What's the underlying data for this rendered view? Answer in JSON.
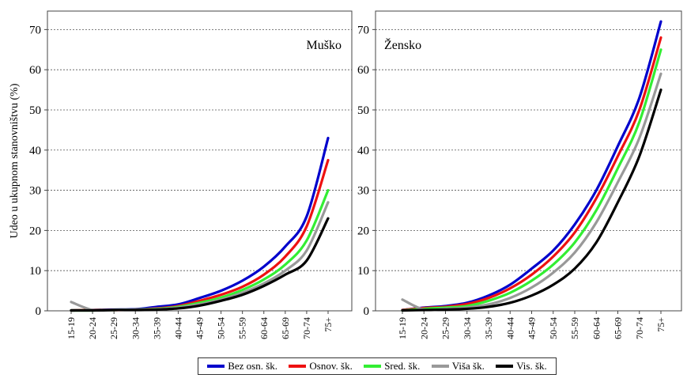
{
  "chart_data": [
    {
      "type": "line",
      "title": "Muško",
      "ylabel": "Udeo u ukupnom stanovništvu (%)",
      "xlabel": "",
      "ylim": [
        0,
        75
      ],
      "yticks": [
        0,
        10,
        20,
        30,
        40,
        50,
        60,
        70
      ],
      "grid": "horizontal dashed",
      "categories": [
        "15-19",
        "20-24",
        "25-29",
        "30-34",
        "35-39",
        "40-44",
        "45-49",
        "50-54",
        "55-59",
        "60-64",
        "65-69",
        "70-74",
        "75+"
      ],
      "series": [
        {
          "name": "Bez osn. šk.",
          "color": "#0000cc",
          "values": [
            0.1,
            0.2,
            0.3,
            0.4,
            1.0,
            1.6,
            3.2,
            5.0,
            7.5,
            11.0,
            16.0,
            23.5,
            43.0
          ]
        },
        {
          "name": "Osnov. šk.",
          "color": "#ee1111",
          "values": [
            0.1,
            0.2,
            0.2,
            0.3,
            0.6,
            1.2,
            2.5,
            4.0,
            6.0,
            9.0,
            13.5,
            21.0,
            37.5
          ]
        },
        {
          "name": "Sred. šk.",
          "color": "#33ee33",
          "values": [
            0.1,
            0.1,
            0.2,
            0.3,
            0.5,
            1.0,
            2.0,
            3.3,
            5.2,
            7.8,
            11.5,
            17.5,
            30.0
          ]
        },
        {
          "name": "Viša šk.",
          "color": "#999999",
          "values": [
            2.2,
            0.2,
            0.2,
            0.3,
            0.4,
            0.8,
            1.6,
            2.8,
            4.5,
            6.8,
            10.0,
            15.0,
            27.0
          ]
        },
        {
          "name": "Vis. šk.",
          "color": "#000000",
          "values": [
            0.1,
            0.1,
            0.2,
            0.2,
            0.3,
            0.6,
            1.3,
            2.5,
            4.0,
            6.2,
            9.0,
            12.5,
            23.0
          ]
        }
      ]
    },
    {
      "type": "line",
      "title": "Žensko",
      "ylabel": "",
      "xlabel": "",
      "ylim": [
        0,
        75
      ],
      "yticks": [
        0,
        10,
        20,
        30,
        40,
        50,
        60,
        70
      ],
      "grid": "horizontal dashed",
      "categories": [
        "15-19",
        "20-24",
        "25-29",
        "30-34",
        "35-39",
        "40-44",
        "45-49",
        "50-54",
        "55-59",
        "60-64",
        "65-69",
        "70-74",
        "75+"
      ],
      "series": [
        {
          "name": "Bez osn. šk.",
          "color": "#0000cc",
          "values": [
            0.2,
            0.8,
            1.2,
            2.0,
            3.8,
            6.5,
            10.5,
            15.0,
            21.5,
            30.0,
            41.0,
            53.0,
            72.0
          ]
        },
        {
          "name": "Osnov. šk.",
          "color": "#ee1111",
          "values": [
            0.2,
            0.7,
            1.0,
            1.7,
            3.2,
            5.6,
            9.0,
            13.5,
            19.5,
            28.0,
            38.5,
            50.0,
            68.0
          ]
        },
        {
          "name": "Sred. šk.",
          "color": "#33ee33",
          "values": [
            0.1,
            0.5,
            0.8,
            1.2,
            2.5,
            4.5,
            7.5,
            11.5,
            17.0,
            25.0,
            35.5,
            47.0,
            65.0
          ]
        },
        {
          "name": "Viša šk.",
          "color": "#999999",
          "values": [
            2.8,
            0.3,
            0.5,
            0.8,
            1.6,
            3.2,
            5.8,
            9.5,
            14.5,
            22.0,
            32.0,
            43.0,
            59.0
          ]
        },
        {
          "name": "Vis. šk.",
          "color": "#000000",
          "values": [
            0.1,
            0.2,
            0.3,
            0.5,
            1.0,
            2.0,
            3.8,
            6.5,
            10.5,
            17.0,
            27.0,
            38.5,
            55.0
          ]
        }
      ]
    }
  ],
  "legend": [
    {
      "label": "Bez osn. šk.",
      "color": "#0000cc"
    },
    {
      "label": "Osnov. šk.",
      "color": "#ee1111"
    },
    {
      "label": "Sred. šk.",
      "color": "#33ee33"
    },
    {
      "label": "Viša šk.",
      "color": "#999999"
    },
    {
      "label": "Vis. šk.",
      "color": "#000000"
    }
  ]
}
